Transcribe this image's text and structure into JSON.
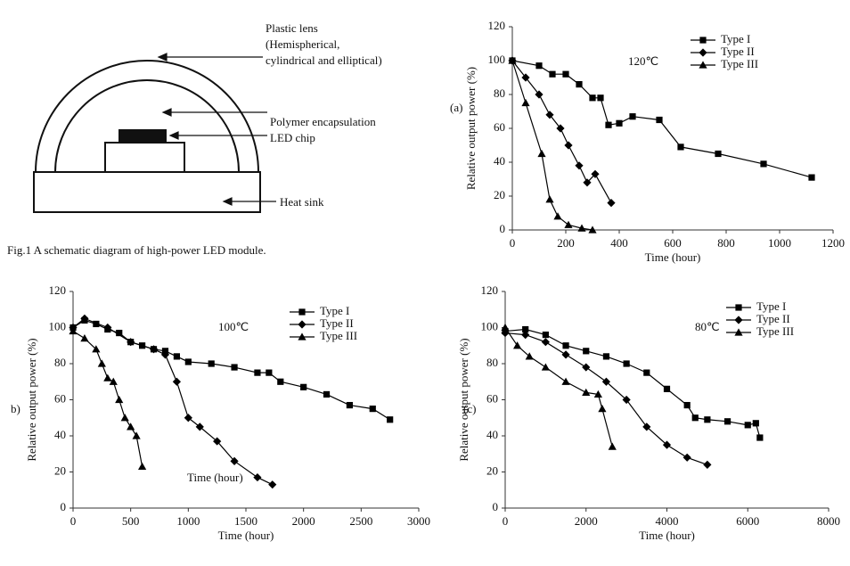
{
  "diagram": {
    "lens_label": [
      "Plastic lens",
      "(Hemispherical,",
      "cylindrical and elliptical)"
    ],
    "encapsulation_label": "Polymer encapsulation",
    "chip_label": "LED chip",
    "heatsink_label": "Heat sink",
    "caption": "Fig.1 A schematic diagram of high-power LED module."
  },
  "chart_data": [
    {
      "type": "line",
      "panel_label": "(a)",
      "annotation": "120℃",
      "xlabel": "Time (hour)",
      "ylabel": "Relative output power (%)",
      "xlim": [
        0,
        1200
      ],
      "ylim": [
        0,
        120
      ],
      "xticks": [
        0,
        200,
        400,
        600,
        800,
        1000,
        1200
      ],
      "yticks": [
        0,
        20,
        40,
        60,
        80,
        100,
        120
      ],
      "series": [
        {
          "name": "Type I",
          "marker": "square",
          "color": "#000",
          "x": [
            0,
            100,
            150,
            200,
            250,
            300,
            330,
            360,
            400,
            450,
            550,
            630,
            770,
            940,
            1120
          ],
          "values": [
            100,
            97,
            92,
            92,
            86,
            78,
            78,
            62,
            63,
            67,
            65,
            49,
            45,
            39,
            31
          ]
        },
        {
          "name": "Type II",
          "marker": "diamond",
          "color": "#000",
          "x": [
            0,
            50,
            100,
            140,
            180,
            210,
            250,
            280,
            310,
            370
          ],
          "values": [
            100,
            90,
            80,
            68,
            60,
            50,
            38,
            28,
            33,
            16
          ]
        },
        {
          "name": "Type III",
          "marker": "triangle",
          "color": "#000",
          "x": [
            0,
            50,
            110,
            140,
            170,
            210,
            260,
            300
          ],
          "values": [
            100,
            75,
            45,
            18,
            8,
            3,
            1,
            0
          ]
        }
      ]
    },
    {
      "type": "line",
      "panel_label": "b)",
      "annotation": "100℃",
      "inner_label": "Time (hour)",
      "xlabel": "Time (hour)",
      "ylabel": "Relative output power (%)",
      "xlim": [
        0,
        3000
      ],
      "ylim": [
        0,
        120
      ],
      "xticks": [
        0,
        500,
        1000,
        1500,
        2000,
        2500,
        3000
      ],
      "yticks": [
        0,
        20,
        40,
        60,
        80,
        100,
        120
      ],
      "series": [
        {
          "name": "Type I",
          "marker": "square",
          "color": "#000",
          "x": [
            0,
            100,
            200,
            300,
            400,
            500,
            600,
            700,
            800,
            900,
            1000,
            1200,
            1400,
            1600,
            1700,
            1800,
            2000,
            2200,
            2400,
            2600,
            2750
          ],
          "values": [
            100,
            104,
            102,
            99,
            97,
            92,
            90,
            88,
            87,
            84,
            81,
            80,
            78,
            75,
            75,
            70,
            67,
            63,
            57,
            55,
            49
          ]
        },
        {
          "name": "Type II",
          "marker": "diamond",
          "color": "#000",
          "x": [
            0,
            100,
            300,
            500,
            700,
            800,
            900,
            1000,
            1100,
            1250,
            1400,
            1600,
            1730
          ],
          "values": [
            100,
            105,
            100,
            92,
            88,
            85,
            70,
            50,
            45,
            37,
            26,
            17,
            13
          ]
        },
        {
          "name": "Type III",
          "marker": "triangle",
          "color": "#000",
          "x": [
            0,
            100,
            200,
            250,
            300,
            350,
            400,
            450,
            500,
            550,
            600
          ],
          "values": [
            98,
            94,
            88,
            80,
            72,
            70,
            60,
            50,
            45,
            40,
            23
          ]
        }
      ]
    },
    {
      "type": "line",
      "panel_label": "(c)",
      "annotation": "80℃",
      "xlabel": "Time (hour)",
      "ylabel": "Relative output power (%)",
      "xlim": [
        0,
        8000
      ],
      "ylim": [
        0,
        120
      ],
      "xticks": [
        0,
        2000,
        4000,
        6000,
        8000
      ],
      "yticks": [
        0,
        20,
        40,
        60,
        80,
        100,
        120
      ],
      "series": [
        {
          "name": "Type I",
          "marker": "square",
          "color": "#000",
          "x": [
            0,
            500,
            1000,
            1500,
            2000,
            2500,
            3000,
            3500,
            4000,
            4500,
            4700,
            5000,
            5500,
            6000,
            6200,
            6300
          ],
          "values": [
            98,
            99,
            96,
            90,
            87,
            84,
            80,
            75,
            66,
            57,
            50,
            49,
            48,
            46,
            47,
            39
          ]
        },
        {
          "name": "Type II",
          "marker": "diamond",
          "color": "#000",
          "x": [
            0,
            500,
            1000,
            1500,
            2000,
            2500,
            3000,
            3500,
            4000,
            4500,
            5000
          ],
          "values": [
            97,
            96,
            92,
            85,
            78,
            70,
            60,
            45,
            35,
            28,
            24
          ]
        },
        {
          "name": "Type III",
          "marker": "triangle",
          "color": "#000",
          "x": [
            0,
            300,
            600,
            1000,
            1500,
            2000,
            2300,
            2400,
            2650
          ],
          "values": [
            100,
            90,
            84,
            78,
            70,
            64,
            63,
            55,
            34
          ]
        }
      ]
    }
  ]
}
